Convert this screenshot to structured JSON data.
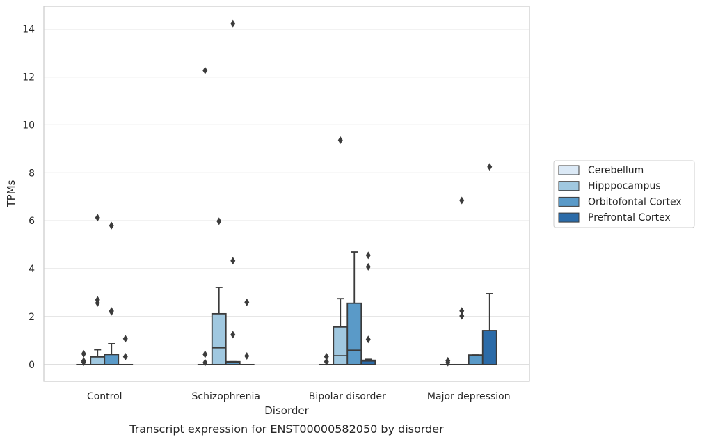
{
  "chart_data": {
    "type": "boxplot",
    "title": "",
    "caption": "Transcript expression for ENST00000582050 by disorder",
    "xlabel": "Disorder",
    "ylabel": "TPMs",
    "ylim": [
      -0.7,
      14.95
    ],
    "yticks": [
      0,
      2,
      4,
      6,
      8,
      10,
      12,
      14
    ],
    "grid": "horizontal",
    "legend_position": "right",
    "categories": [
      "Control",
      "Schizophrenia",
      "Bipolar disorder",
      "Major depression"
    ],
    "series": [
      {
        "name": "Cerebellum",
        "color": "#dbe9f6",
        "boxes": [
          {
            "whislo": 0.0,
            "q1": 0.0,
            "med": 0.0,
            "q3": 0.0,
            "whishi": 0.0,
            "fliers": [
              0.45,
              0.15,
              0.1
            ]
          },
          {
            "whislo": 0.0,
            "q1": 0.0,
            "med": 0.0,
            "q3": 0.0,
            "whishi": 0.0,
            "fliers": [
              0.43,
              0.08,
              12.27
            ]
          },
          {
            "whislo": 0.0,
            "q1": 0.0,
            "med": 0.0,
            "q3": 0.0,
            "whishi": 0.0,
            "fliers": [
              0.33,
              0.12
            ]
          },
          {
            "whislo": 0.0,
            "q1": 0.0,
            "med": 0.0,
            "q3": 0.0,
            "whishi": 0.0,
            "fliers": [
              0.16,
              0.08
            ]
          }
        ]
      },
      {
        "name": "Hipppocampus",
        "color": "#a0c8e0",
        "boxes": [
          {
            "whislo": 0.0,
            "q1": 0.0,
            "med": 0.0,
            "q3": 0.32,
            "whishi": 0.62,
            "fliers": [
              2.7,
              2.57,
              6.13
            ]
          },
          {
            "whislo": 0.0,
            "q1": 0.0,
            "med": 0.7,
            "q3": 2.12,
            "whishi": 3.22,
            "fliers": [
              5.98
            ]
          },
          {
            "whislo": 0.0,
            "q1": 0.0,
            "med": 0.37,
            "q3": 1.57,
            "whishi": 2.75,
            "fliers": [
              9.36
            ]
          },
          {
            "whislo": 0.0,
            "q1": 0.0,
            "med": 0.0,
            "q3": 0.0,
            "whishi": 0.0,
            "fliers": [
              2.24,
              2.03,
              6.85
            ]
          }
        ]
      },
      {
        "name": "Orbitofontal Cortex",
        "color": "#5a9ac8",
        "boxes": [
          {
            "whislo": 0.0,
            "q1": 0.0,
            "med": 0.0,
            "q3": 0.42,
            "whishi": 0.87,
            "fliers": [
              2.24,
              2.2,
              5.8
            ]
          },
          {
            "whislo": 0.0,
            "q1": 0.0,
            "med": 0.1,
            "q3": 0.12,
            "whishi": 0.12,
            "fliers": [
              14.22,
              4.33,
              1.25
            ]
          },
          {
            "whislo": 0.0,
            "q1": 0.0,
            "med": 0.6,
            "q3": 2.56,
            "whishi": 4.7,
            "fliers": []
          },
          {
            "whislo": 0.0,
            "q1": 0.0,
            "med": 0.0,
            "q3": 0.4,
            "whishi": 0.4,
            "fliers": []
          }
        ]
      },
      {
        "name": "Prefrontal Cortex",
        "color": "#2b6ba8",
        "boxes": [
          {
            "whislo": 0.0,
            "q1": 0.0,
            "med": 0.0,
            "q3": 0.0,
            "whishi": 0.0,
            "fliers": [
              1.08,
              0.33
            ]
          },
          {
            "whislo": 0.0,
            "q1": 0.0,
            "med": 0.0,
            "q3": 0.0,
            "whishi": 0.0,
            "fliers": [
              2.6,
              0.36
            ]
          },
          {
            "whislo": 0.0,
            "q1": 0.0,
            "med": 0.15,
            "q3": 0.18,
            "whishi": 0.22,
            "fliers": [
              4.56,
              4.08,
              1.05
            ]
          },
          {
            "whislo": 0.0,
            "q1": 0.0,
            "med": 0.0,
            "q3": 1.42,
            "whishi": 2.96,
            "fliers": [
              8.25
            ]
          }
        ]
      }
    ]
  }
}
